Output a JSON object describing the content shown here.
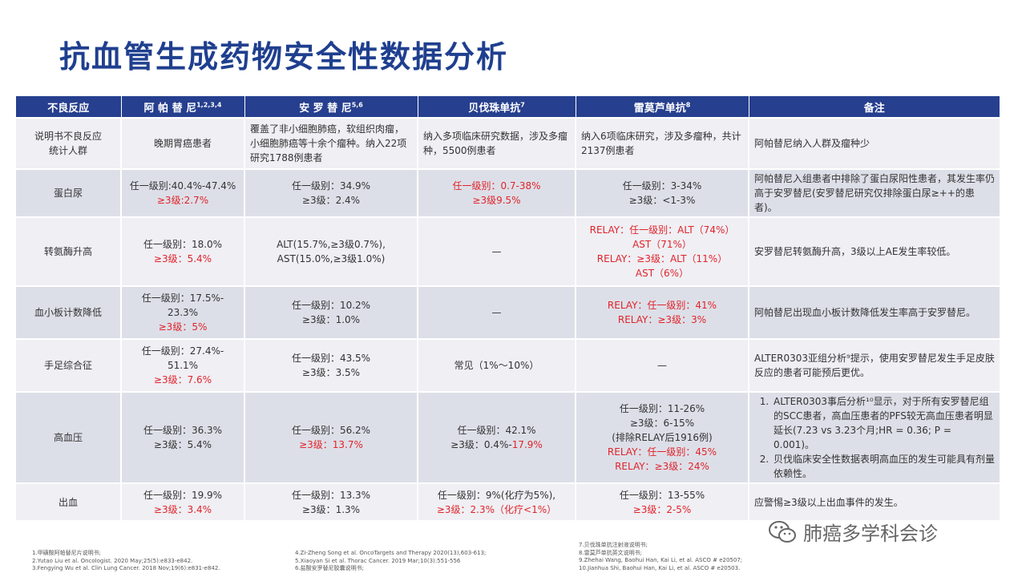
{
  "title": "抗血管生成药物安全性数据分析",
  "headers": {
    "reaction": "不良反应",
    "d1": "阿 帕 替 尼",
    "d1_sup": "1,2,3,4",
    "d2": "安 罗 替 尼",
    "d2_sup": "5,6",
    "d3": "贝伐珠单抗",
    "d3_sup": "7",
    "d4": "雷莫芦单抗",
    "d4_sup": "8",
    "notes": "备注"
  },
  "rows": [
    {
      "name": [
        "说明书不良反应",
        "统计人群"
      ],
      "d1": [
        {
          "t": "晚期胃癌患者",
          "r": false
        }
      ],
      "d2": [
        {
          "t": "覆盖了非小细胞肺癌，软组织肉瘤，小细胞肺癌等十余个瘤种。纳入22项研究1788例患者",
          "r": false
        }
      ],
      "d3": [
        {
          "t": "纳入多项临床研究数据，涉及多瘤种，5500例患者",
          "r": false
        }
      ],
      "d4": [
        {
          "t": "纳入6项临床研究，涉及多瘤种，共计2137例患者",
          "r": false
        }
      ],
      "note": [
        "阿帕替尼纳入人群及瘤种少"
      ]
    },
    {
      "name": [
        "蛋白尿"
      ],
      "d1": [
        {
          "t": "任一级别:40.4%-47.4%",
          "r": false
        },
        {
          "t": "≥3级:2.7%",
          "r": true
        }
      ],
      "d2": [
        {
          "t": "任一级别：34.9%",
          "r": false
        },
        {
          "t": "≥3级：2.4%",
          "r": false
        }
      ],
      "d3": [
        {
          "t": "任一级别：0.7-38%",
          "r": true
        },
        {
          "t": "≥3级9.5%",
          "r": true
        }
      ],
      "d4": [
        {
          "t": "任一级别：3-34%",
          "r": false
        },
        {
          "t": "≥3级：<1-3%",
          "r": false
        }
      ],
      "note": [
        "阿帕替尼入组患者中排除了蛋白尿阳性患者，其发生率仍高于安罗替尼(安罗替尼研究仅排除蛋白尿≥++的患者)。"
      ]
    },
    {
      "name": [
        "转氨酶升高"
      ],
      "d1": [
        {
          "t": "任一级别：18.0%",
          "r": false
        },
        {
          "t": "≥3级：5.4%",
          "r": true
        }
      ],
      "d2": [
        {
          "t": "ALT(15.7%,≥3级0.7%),",
          "r": false
        },
        {
          "t": "AST(15.0%,≥3级1.0%)",
          "r": false
        }
      ],
      "d3": [
        {
          "t": "—",
          "r": false
        }
      ],
      "d4": [
        {
          "t": "RELAY：任一级别：ALT（74%）",
          "r": true
        },
        {
          "t": "AST（71%）",
          "r": true
        },
        {
          "t": "RELAY：≥3级：ALT（11%）",
          "r": true
        },
        {
          "t": "AST（6%）",
          "r": true
        }
      ],
      "note": [
        "安罗替尼转氨酶升高，3级以上AE发生率较低。"
      ]
    },
    {
      "name": [
        "血小板计数降低"
      ],
      "d1": [
        {
          "t": "任一级别：17.5%-",
          "r": false
        },
        {
          "t": "23.3%",
          "r": false
        },
        {
          "t": "≥3级：5%",
          "r": true
        }
      ],
      "d2": [
        {
          "t": "任一级别：10.2%",
          "r": false
        },
        {
          "t": "≥3级：1.0%",
          "r": false
        }
      ],
      "d3": [
        {
          "t": "—",
          "r": false
        }
      ],
      "d4": [
        {
          "t": "RELAY：任一级别：41%",
          "r": true
        },
        {
          "t": "RELAY：≥3级：3%",
          "r": true
        }
      ],
      "note": [
        "阿帕替尼出现血小板计数降低发生率高于安罗替尼。"
      ]
    },
    {
      "name": [
        "手足综合征"
      ],
      "d1": [
        {
          "t": "任一级别：27.4%-",
          "r": false
        },
        {
          "t": "51.1%",
          "r": false
        },
        {
          "t": "≥3级：7.6%",
          "r": true
        }
      ],
      "d2": [
        {
          "t": "任一级别：43.5%",
          "r": false
        },
        {
          "t": "≥3级：3.5%",
          "r": false
        }
      ],
      "d3": [
        {
          "t": "常见（1%～10%）",
          "r": false
        }
      ],
      "d4": [
        {
          "t": "—",
          "r": false
        }
      ],
      "note": [
        "ALTER0303亚组分析⁹提示，使用安罗替尼发生手足皮肤反应的患者可能预后更优。"
      ]
    },
    {
      "name": [
        "高血压"
      ],
      "d1": [
        {
          "t": "任一级别：36.3%",
          "r": false
        },
        {
          "t": "≥3级：5.4%",
          "r": false
        }
      ],
      "d2": [
        {
          "t": "任一级别：56.2%",
          "r": false
        },
        {
          "t": "≥3级：13.7%",
          "r": true
        }
      ],
      "d3": [
        {
          "t": "任一级别：42.1%",
          "r": false
        },
        {
          "t": "≥3级：0.4%-",
          "r": false,
          "tail": "17.9%"
        }
      ],
      "d4": [
        {
          "t": "任一级别：11-26%",
          "r": false
        },
        {
          "t": "≥3级：6-15%",
          "r": false
        },
        {
          "t": "(排除RELAY后1916例)",
          "r": false
        },
        {
          "t": "RELAY：任一级别：45%",
          "r": true
        },
        {
          "t": "RELAY：≥3级：24%",
          "r": true
        }
      ],
      "note_list": [
        "ALTER0303事后分析¹⁰显示，对于所有安罗替尼组的SCC患者，高血压患者的PFS较无高血压患者明显延长(7.23 vs 3.23个月;HR = 0.36; P = 0.001)。",
        "贝伐临床安全性数据表明高血压的发生可能具有剂量依赖性。"
      ]
    },
    {
      "name": [
        "出血"
      ],
      "d1": [
        {
          "t": "任一级别：19.9%",
          "r": false
        },
        {
          "t": "≥3级：3.4%",
          "r": true
        }
      ],
      "d2": [
        {
          "t": "任一级别：13.3%",
          "r": false
        },
        {
          "t": "≥3级：1.3%",
          "r": false
        }
      ],
      "d3": [
        {
          "t": "任一级别：9%(化疗为5%),",
          "r": false
        },
        {
          "t": "≥3级：2.3%（化疗<1%）",
          "r": true
        }
      ],
      "d4": [
        {
          "t": "任一级别：13-55%",
          "r": false,
          "dark": true
        },
        {
          "t": "≥3级：2-5%",
          "r": true
        }
      ],
      "note": [
        "应警惕≥3级以上出血事件的发生。"
      ]
    }
  ],
  "footnotes": {
    "col1": [
      "1.甲磺酸阿帕替尼片说明书;",
      "2.Yutao Liu et al. Oncologist. 2020 May;25(5):e833-e842.",
      "3.Fengying Wu et al. Clin Lung Cancer. 2018 Nov;19(6):e831-e842."
    ],
    "col2": [
      "4.Zi-Zheng Song et al. OncoTargets and Therapy 2020(13),603-613;",
      "5.Xiaoyan Si et al. Thorac Cancer. 2019 Mar;10(3):551-556",
      "6.盐酸安罗替尼胶囊说明书;"
    ],
    "col3": [
      "7.贝伐珠单抗注射液说明书;",
      "8.雷莫芦单抗英文说明书;",
      "9.Zhehai Wang, Baohui Han, Kai Li, et al. ASCO # e20507;",
      "10.Jianhua Shi, Baohui Han, Kai Li, et al. ASCO # e20503."
    ]
  },
  "watermark": {
    "text": "肺癌多学科会诊",
    "icon": "wechat-icon"
  },
  "colors": {
    "header_bg": "#263F8E",
    "title": "#1F3F8F",
    "highlight": "#E0242A",
    "row_odd": "#EFEFF4",
    "row_even": "#DDDFE8"
  }
}
